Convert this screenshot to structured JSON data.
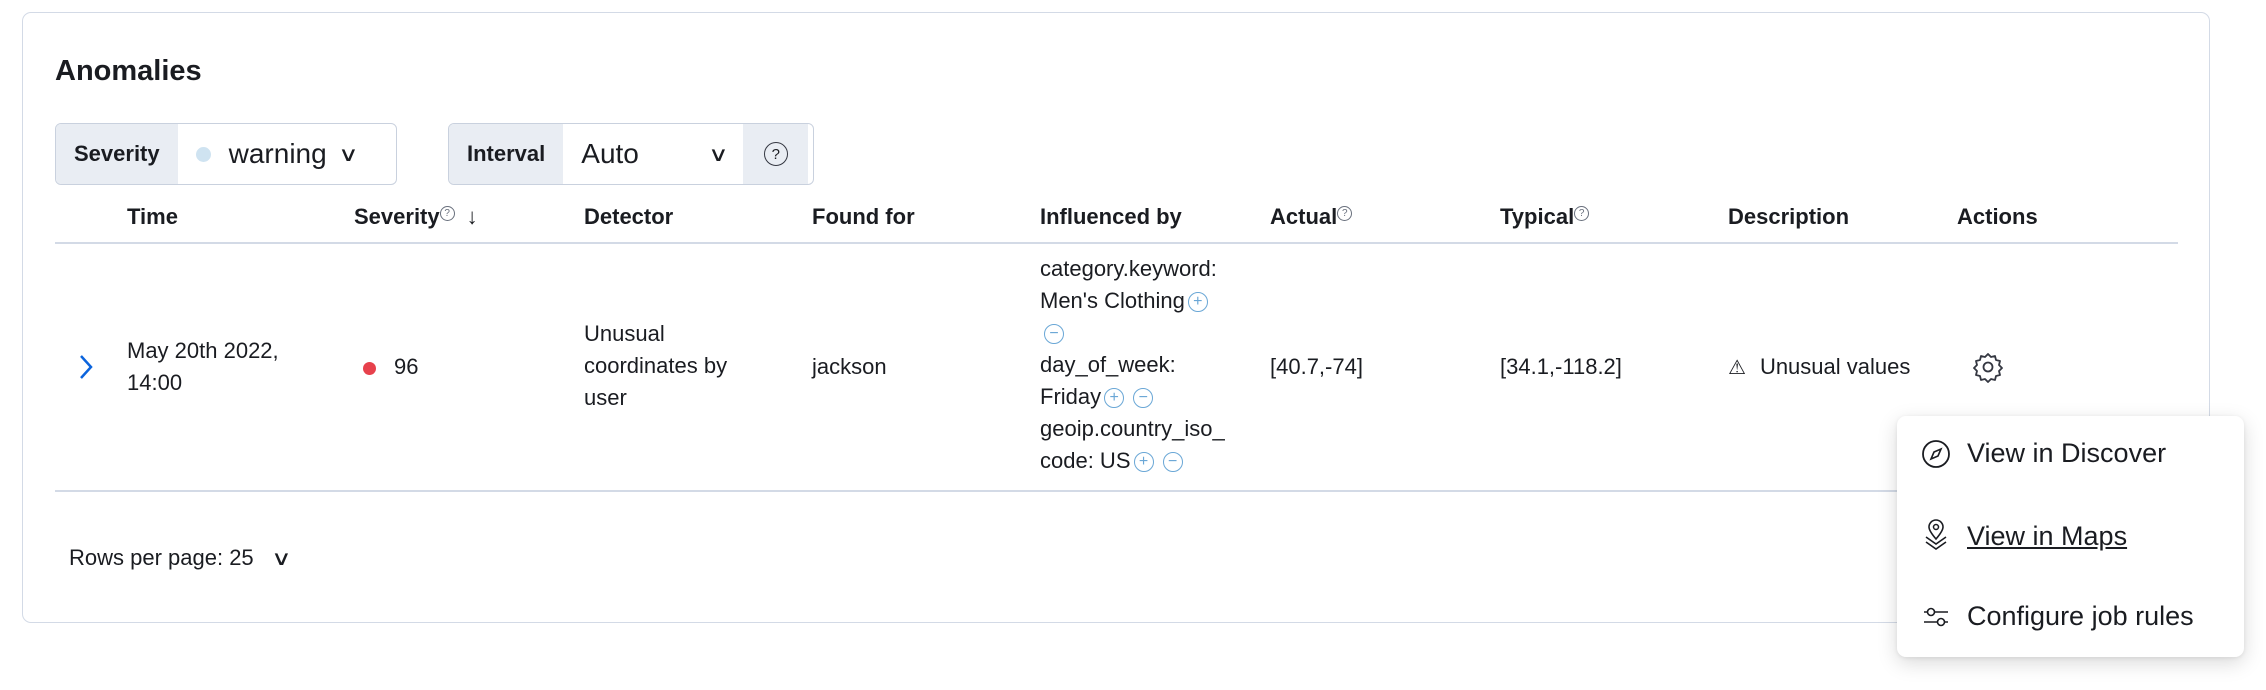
{
  "panel": {
    "title": "Anomalies"
  },
  "filters": {
    "severity": {
      "label": "Severity",
      "value": "warning",
      "dot_color": "#cfe3f1"
    },
    "interval": {
      "label": "Interval",
      "value": "Auto",
      "help_icon": "question-circle-icon"
    }
  },
  "table": {
    "columns": {
      "time": "Time",
      "severity": "Severity",
      "detector": "Detector",
      "found_for": "Found for",
      "influenced_by": "Influenced by",
      "actual": "Actual",
      "typical": "Typical",
      "description": "Description",
      "actions": "Actions"
    },
    "sort": {
      "column": "Severity",
      "direction": "descending"
    },
    "rows": [
      {
        "time_line1": "May 20th 2022,",
        "time_line2": "14:00",
        "severity": "96",
        "severity_color": "#e7414c",
        "detector_lines": [
          "Unusual",
          "coordinates by",
          "user"
        ],
        "found_for": "jackson",
        "influencers": [
          {
            "line1": "category.keyword:",
            "line2": "Men's Clothing"
          },
          {
            "line1": "day_of_week:",
            "line2": "Friday"
          },
          {
            "line1": "geoip.country_iso_",
            "line2": "code: US"
          }
        ],
        "actual": "[40.7,-74]",
        "typical": "[34.1,-118.2]",
        "description": "Unusual values"
      }
    ]
  },
  "pagination": {
    "rows_per_page": "Rows per page: 25"
  },
  "actions_menu": {
    "items": [
      "View in Discover",
      "View in Maps",
      "Configure job rules"
    ]
  }
}
